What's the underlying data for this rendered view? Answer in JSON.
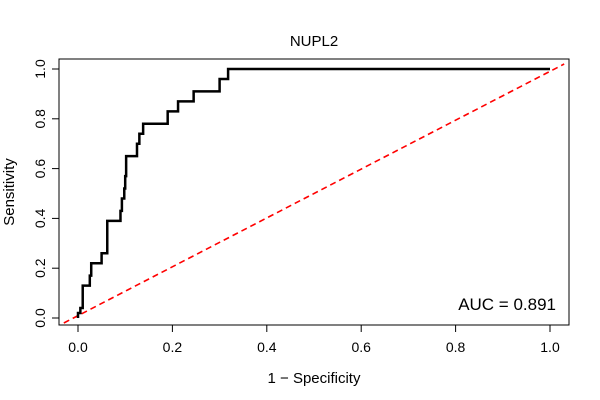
{
  "chart_data": {
    "type": "line",
    "title": "NUPL2",
    "xlabel": "1 − Specificity",
    "ylabel": "Sensitivity",
    "xlim": [
      0,
      1
    ],
    "ylim": [
      0,
      1
    ],
    "grid": false,
    "x_ticks": [
      "0.0",
      "0.2",
      "0.4",
      "0.6",
      "0.8",
      "1.0"
    ],
    "y_ticks": [
      "0.0",
      "0.2",
      "0.4",
      "0.6",
      "0.8",
      "1.0"
    ],
    "series": [
      {
        "type": "step",
        "color": "#000000",
        "style": "solid",
        "points": [
          [
            0.0,
            0.0
          ],
          [
            0.0,
            0.02
          ],
          [
            0.005,
            0.02
          ],
          [
            0.005,
            0.04
          ],
          [
            0.01,
            0.04
          ],
          [
            0.01,
            0.13
          ],
          [
            0.025,
            0.13
          ],
          [
            0.025,
            0.17
          ],
          [
            0.028,
            0.17
          ],
          [
            0.028,
            0.22
          ],
          [
            0.05,
            0.22
          ],
          [
            0.05,
            0.26
          ],
          [
            0.062,
            0.26
          ],
          [
            0.062,
            0.39
          ],
          [
            0.09,
            0.39
          ],
          [
            0.09,
            0.43
          ],
          [
            0.093,
            0.43
          ],
          [
            0.093,
            0.48
          ],
          [
            0.098,
            0.48
          ],
          [
            0.098,
            0.52
          ],
          [
            0.1,
            0.52
          ],
          [
            0.1,
            0.57
          ],
          [
            0.102,
            0.57
          ],
          [
            0.102,
            0.65
          ],
          [
            0.125,
            0.65
          ],
          [
            0.125,
            0.7
          ],
          [
            0.13,
            0.7
          ],
          [
            0.13,
            0.74
          ],
          [
            0.138,
            0.74
          ],
          [
            0.138,
            0.78
          ],
          [
            0.19,
            0.78
          ],
          [
            0.19,
            0.83
          ],
          [
            0.212,
            0.83
          ],
          [
            0.212,
            0.87
          ],
          [
            0.245,
            0.87
          ],
          [
            0.245,
            0.91
          ],
          [
            0.3,
            0.91
          ],
          [
            0.3,
            0.96
          ],
          [
            0.318,
            0.96
          ],
          [
            0.318,
            1.0
          ],
          [
            1.0,
            1.0
          ]
        ]
      },
      {
        "type": "diagonal",
        "color": "#ff0000",
        "style": "dashed",
        "points": [
          [
            -0.03,
            -0.02
          ],
          [
            1.03,
            1.02
          ]
        ]
      }
    ],
    "annotations": [
      {
        "text": "AUC = 0.891"
      }
    ]
  }
}
